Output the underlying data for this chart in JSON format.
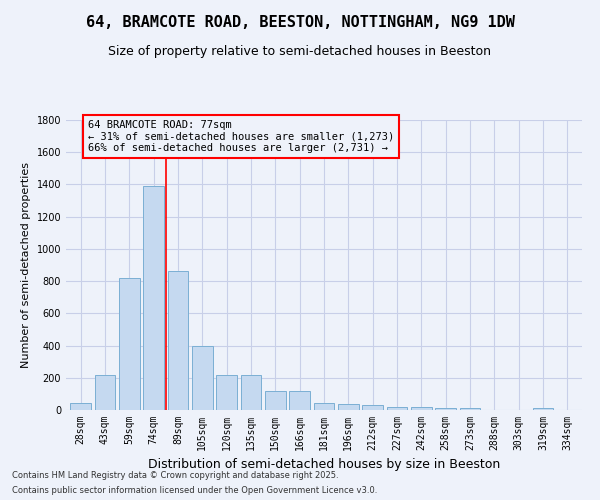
{
  "title1": "64, BRAMCOTE ROAD, BEESTON, NOTTINGHAM, NG9 1DW",
  "title2": "Size of property relative to semi-detached houses in Beeston",
  "xlabel": "Distribution of semi-detached houses by size in Beeston",
  "ylabel": "Number of semi-detached properties",
  "categories": [
    "28sqm",
    "43sqm",
    "59sqm",
    "74sqm",
    "89sqm",
    "105sqm",
    "120sqm",
    "135sqm",
    "150sqm",
    "166sqm",
    "181sqm",
    "196sqm",
    "212sqm",
    "227sqm",
    "242sqm",
    "258sqm",
    "273sqm",
    "288sqm",
    "303sqm",
    "319sqm",
    "334sqm"
  ],
  "values": [
    45,
    220,
    820,
    1390,
    860,
    400,
    220,
    220,
    115,
    115,
    45,
    35,
    30,
    20,
    20,
    15,
    10,
    0,
    0,
    15,
    0
  ],
  "bar_color": "#c5d9f0",
  "bar_edge_color": "#7bafd4",
  "property_label": "64 BRAMCOTE ROAD: 77sqm",
  "pct_smaller": 31,
  "count_smaller": 1273,
  "pct_larger": 66,
  "count_larger": 2731,
  "vline_color": "red",
  "vline_position": 3.5,
  "annotation_box_color": "red",
  "ylim": [
    0,
    1800
  ],
  "yticks": [
    0,
    200,
    400,
    600,
    800,
    1000,
    1200,
    1400,
    1600,
    1800
  ],
  "background_color": "#eef2fa",
  "grid_color": "#c8cfe8",
  "footer1": "Contains HM Land Registry data © Crown copyright and database right 2025.",
  "footer2": "Contains public sector information licensed under the Open Government Licence v3.0.",
  "title1_fontsize": 11,
  "title2_fontsize": 9,
  "axis_fontsize": 8,
  "tick_fontsize": 7
}
